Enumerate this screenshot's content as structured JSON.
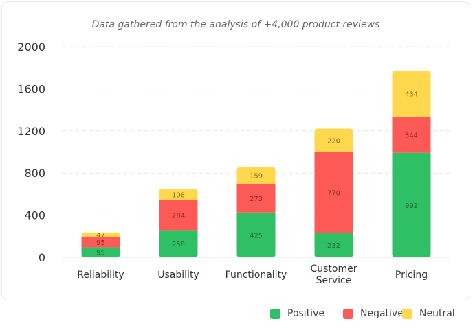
{
  "chart_data": {
    "type": "bar",
    "stacked": true,
    "title": "Data gathered from the analysis of +4,000 product reviews",
    "categories": [
      "Reliability",
      "Usability",
      "Functionality",
      "Customer Service",
      "Pricing"
    ],
    "series": [
      {
        "name": "Positive",
        "color": "#2fbf64",
        "values": [
          95,
          258,
          425,
          232,
          992
        ]
      },
      {
        "name": "Negative",
        "color": "#fd5a57",
        "values": [
          95,
          284,
          273,
          770,
          344
        ]
      },
      {
        "name": "Neutral",
        "color": "#ffd84e",
        "values": [
          47,
          108,
          159,
          220,
          434
        ]
      }
    ],
    "ylim": [
      0,
      2000
    ],
    "yticks": [
      0,
      400,
      800,
      1200,
      1600,
      2000
    ],
    "grid": true,
    "legend": "bottom-right"
  }
}
